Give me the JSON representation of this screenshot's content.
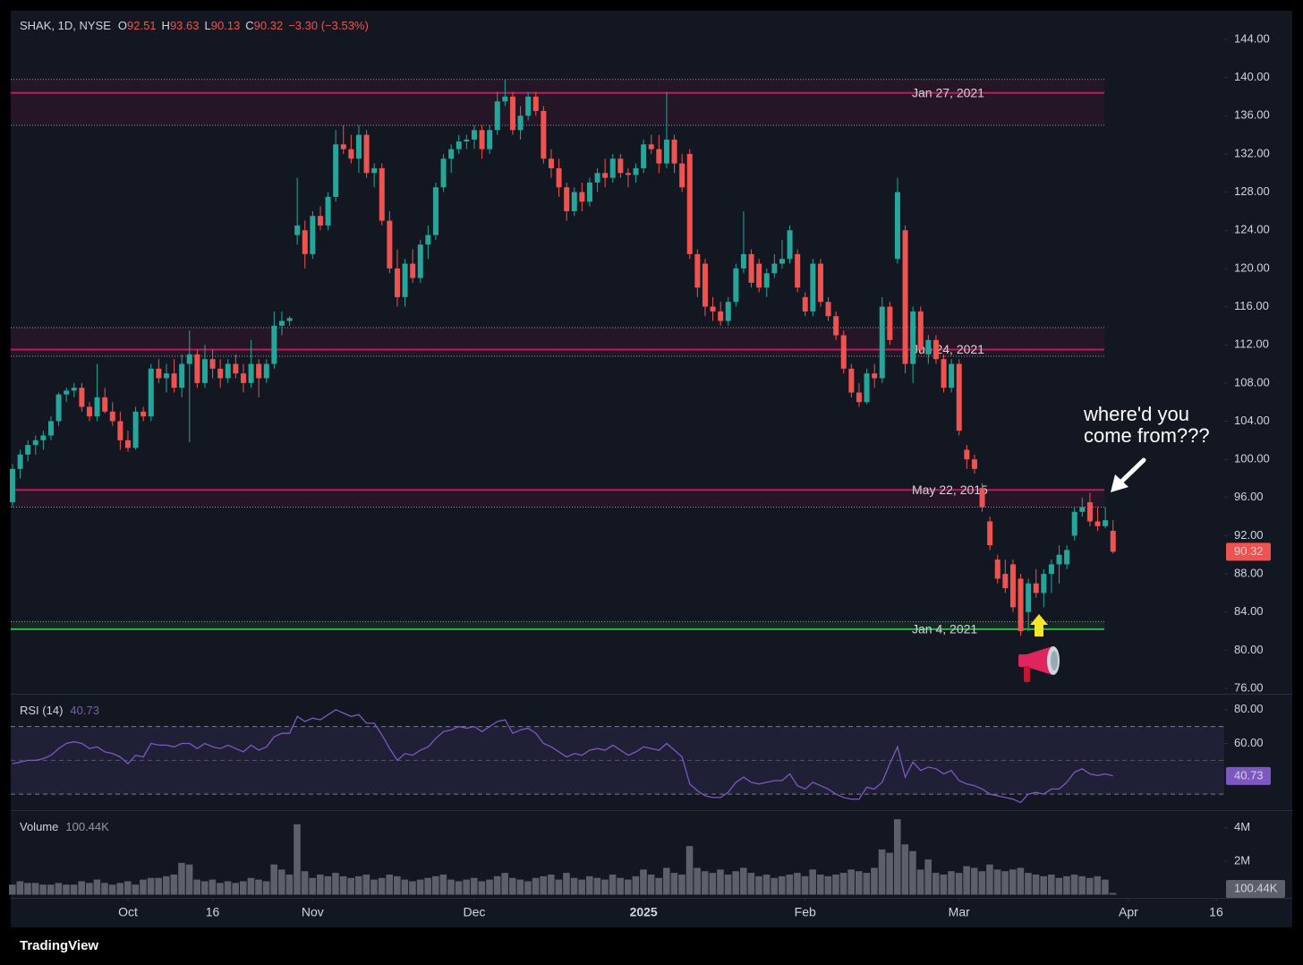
{
  "chart_data": [
    {
      "type": "candlestick",
      "symbol": "SHAK, 1D, NYSE",
      "change_label": "−3.30 (−3.53%)",
      "ohlc_letters": [
        "O",
        "H",
        "L",
        "C"
      ],
      "up_color": "#26a69a",
      "down_color": "#ef5350",
      "xlim": [
        -0.23,
        157.45
      ],
      "xticks": [
        {
          "value": 15,
          "label": "Oct"
        },
        {
          "value": 26,
          "label": "16"
        },
        {
          "value": 39,
          "label": "Nov"
        },
        {
          "value": 60,
          "label": "Dec"
        },
        {
          "value": 82,
          "label": "2025",
          "bold": true
        },
        {
          "value": 103,
          "label": "Feb"
        },
        {
          "value": 123,
          "label": "Mar"
        },
        {
          "value": 145,
          "label": "Apr"
        },
        {
          "value": 156.4,
          "label": "16"
        }
      ],
      "ylim": [
        75.44,
        147.0
      ],
      "yticks": [
        {
          "value": 144,
          "label": "144.00"
        },
        {
          "value": 140,
          "label": "140.00"
        },
        {
          "value": 136,
          "label": "136.00"
        },
        {
          "value": 132,
          "label": "132.00"
        },
        {
          "value": 128,
          "label": "128.00"
        },
        {
          "value": 124,
          "label": "124.00"
        },
        {
          "value": 120,
          "label": "120.00"
        },
        {
          "value": 116,
          "label": "116.00"
        },
        {
          "value": 112,
          "label": "112.00"
        },
        {
          "value": 108,
          "label": "108.00"
        },
        {
          "value": 104,
          "label": "104.00"
        },
        {
          "value": 100,
          "label": "100.00"
        },
        {
          "value": 96,
          "label": "96.00"
        },
        {
          "value": 92,
          "label": "92.00"
        },
        {
          "value": 88,
          "label": "88.00"
        },
        {
          "value": 84,
          "label": "84.00"
        },
        {
          "value": 80,
          "label": "80.00"
        },
        {
          "value": 76,
          "label": "76.00"
        }
      ],
      "levels": [
        {
          "label": "Jan 27, 2021",
          "value": 138.4,
          "zone": [
            135.0,
            139.8
          ],
          "color": "#c2185b"
        },
        {
          "label": "Jun 24, 2021",
          "value": 111.5,
          "zone": [
            110.8,
            113.8
          ],
          "color": "#c2185b"
        },
        {
          "label": "May 22, 2015",
          "value": 96.8,
          "zone": [
            95.0,
            96.8
          ],
          "color": "#c2185b"
        },
        {
          "label": "Jan 4, 2021",
          "value": 82.2,
          "zone": [
            82.2,
            83.0
          ],
          "color": "#2fb344"
        }
      ],
      "annotation": [
        "where'd you",
        "come from???"
      ],
      "candles": [
        [
          95.5,
          99.5,
          95,
          99
        ],
        [
          99,
          101,
          98,
          100.5
        ],
        [
          100.5,
          102,
          99.8,
          101.5
        ],
        [
          101.5,
          102.5,
          100.5,
          102
        ],
        [
          102,
          103,
          101,
          102.5
        ],
        [
          102.5,
          104.5,
          102,
          104
        ],
        [
          104,
          107,
          103.5,
          106.8
        ],
        [
          106.8,
          107.5,
          106,
          107.2
        ],
        [
          107.2,
          108,
          106.5,
          107.5
        ],
        [
          107.5,
          108,
          105,
          105.5
        ],
        [
          105.5,
          106,
          104,
          104.5
        ],
        [
          104.5,
          110,
          104,
          106.5
        ],
        [
          106.5,
          107.5,
          104.8,
          105
        ],
        [
          105,
          106,
          103.5,
          104
        ],
        [
          104,
          105,
          101,
          102
        ],
        [
          102,
          103,
          100.8,
          101.2
        ],
        [
          101.2,
          105.5,
          101,
          105
        ],
        [
          105,
          105.5,
          104,
          104.5
        ],
        [
          104.5,
          110,
          104,
          109.5
        ],
        [
          109.5,
          110.5,
          108,
          108.5
        ],
        [
          108.5,
          110,
          107,
          109
        ],
        [
          109,
          110.5,
          107,
          107.5
        ],
        [
          107.5,
          111,
          106.5,
          110
        ],
        [
          110,
          113.5,
          101.8,
          111
        ],
        [
          111,
          111.5,
          107.5,
          108
        ],
        [
          108,
          112,
          107.5,
          110.5
        ],
        [
          110.5,
          111.5,
          108.5,
          109.5
        ],
        [
          109.5,
          110.5,
          107.5,
          108.5
        ],
        [
          108.5,
          110.5,
          108,
          110
        ],
        [
          110,
          111,
          108.5,
          109
        ],
        [
          109,
          110,
          107,
          108
        ],
        [
          108,
          112.5,
          107.5,
          110
        ],
        [
          110,
          110.5,
          106.5,
          108.5
        ],
        [
          108.5,
          110.5,
          108,
          110
        ],
        [
          110,
          115.5,
          109.5,
          114
        ],
        [
          114,
          115.5,
          113,
          114.5
        ],
        [
          114.5,
          115,
          114,
          114.8
        ],
        [
          123.5,
          129.5,
          122.5,
          124.5
        ],
        [
          124,
          125,
          120,
          121.5
        ],
        [
          121.5,
          126,
          121,
          125.5
        ],
        [
          125.5,
          126.5,
          124,
          124.5
        ],
        [
          124.5,
          128,
          124,
          127.5
        ],
        [
          127.5,
          134.5,
          127,
          133
        ],
        [
          133,
          135,
          132,
          132.5
        ],
        [
          132.5,
          134,
          131,
          131.5
        ],
        [
          131.5,
          135,
          130,
          134
        ],
        [
          134,
          134.5,
          129.5,
          130
        ],
        [
          130,
          131,
          128.5,
          130.5
        ],
        [
          130.5,
          131,
          124.5,
          125
        ],
        [
          125,
          126,
          119.5,
          120
        ],
        [
          120,
          122,
          116,
          117
        ],
        [
          117,
          121,
          116,
          120.5
        ],
        [
          120.5,
          122,
          118.5,
          119
        ],
        [
          119,
          123,
          118.5,
          122.5
        ],
        [
          122.5,
          124.5,
          121,
          123.5
        ],
        [
          123.5,
          129,
          123,
          128.5
        ],
        [
          128.5,
          132,
          128,
          131.5
        ],
        [
          131.5,
          133,
          130,
          132.5
        ],
        [
          132.5,
          134,
          132,
          133.3
        ],
        [
          133.3,
          134,
          132.5,
          133.5
        ],
        [
          133.5,
          135,
          132.5,
          134.5
        ],
        [
          134.5,
          135,
          131.5,
          132.5
        ],
        [
          132.5,
          135,
          132,
          134.5
        ],
        [
          134.5,
          138.5,
          134,
          137.5
        ],
        [
          137.5,
          139.8,
          137,
          138
        ],
        [
          138,
          138.5,
          134,
          134.5
        ],
        [
          134.5,
          137,
          133.5,
          136
        ],
        [
          136,
          138.5,
          135.5,
          138
        ],
        [
          138,
          138.5,
          136,
          136.5
        ],
        [
          136.5,
          137,
          131,
          131.5
        ],
        [
          131.5,
          132.5,
          129.5,
          130.5
        ],
        [
          130.5,
          131.5,
          127.5,
          128.5
        ],
        [
          128.5,
          129,
          125,
          126
        ],
        [
          126,
          128.5,
          125.5,
          128
        ],
        [
          128,
          129,
          126,
          127
        ],
        [
          127,
          129.5,
          126.5,
          129
        ],
        [
          129,
          130.5,
          128,
          130
        ],
        [
          130,
          131.5,
          128.5,
          129.5
        ],
        [
          129.5,
          132,
          129,
          131.5
        ],
        [
          131.5,
          132,
          129.5,
          130
        ],
        [
          130,
          130.5,
          128.5,
          129.8
        ],
        [
          129.8,
          131,
          129,
          130.5
        ],
        [
          130.5,
          133.5,
          130,
          133
        ],
        [
          133,
          134,
          132,
          132.5
        ],
        [
          132.5,
          134,
          130,
          131
        ],
        [
          131,
          138.5,
          130.5,
          133.5
        ],
        [
          133.5,
          134,
          130,
          131
        ],
        [
          131,
          132,
          128,
          128.5
        ],
        [
          132,
          132.5,
          121,
          121.5
        ],
        [
          121.5,
          122,
          117,
          118
        ],
        [
          120.5,
          121,
          115,
          116
        ],
        [
          116,
          117,
          114.5,
          115.5
        ],
        [
          115.5,
          116.5,
          114,
          114.5
        ],
        [
          114.5,
          117,
          114,
          116.5
        ],
        [
          116.5,
          120.5,
          116,
          120
        ],
        [
          120,
          126,
          119.5,
          121.5
        ],
        [
          121.5,
          122,
          118,
          118.5
        ],
        [
          120.5,
          121,
          117.5,
          118
        ],
        [
          118,
          120,
          117,
          119.5
        ],
        [
          119.5,
          121.5,
          119,
          120.5
        ],
        [
          120.5,
          123,
          120,
          121
        ],
        [
          121,
          124.5,
          120.5,
          124
        ],
        [
          121.5,
          122,
          117.5,
          118
        ],
        [
          117,
          117.5,
          115,
          115.5
        ],
        [
          115.5,
          121,
          115,
          120.5
        ],
        [
          120.5,
          121,
          116,
          116.5
        ],
        [
          116.5,
          117,
          114.5,
          115
        ],
        [
          115,
          115.5,
          112.5,
          113
        ],
        [
          113,
          113.5,
          109,
          109.5
        ],
        [
          109.5,
          110,
          106.5,
          107
        ],
        [
          107,
          108,
          105.5,
          106
        ],
        [
          106,
          109.5,
          105.8,
          109
        ],
        [
          109,
          110,
          107.5,
          108.5
        ],
        [
          108.5,
          117,
          108,
          116
        ],
        [
          116,
          116.5,
          112,
          112.5
        ],
        [
          121,
          129.5,
          120.5,
          128
        ],
        [
          124,
          124.5,
          109,
          110
        ],
        [
          110,
          116,
          108,
          115.5
        ],
        [
          115.5,
          116,
          111,
          111.5
        ],
        [
          111,
          113,
          110,
          112.5
        ],
        [
          112.5,
          113,
          110,
          110.5
        ],
        [
          110.5,
          111,
          107,
          107.5
        ],
        [
          107.5,
          110.5,
          107,
          110
        ],
        [
          110,
          110.5,
          102.5,
          103
        ],
        [
          101,
          101.5,
          99,
          100
        ],
        [
          100,
          100.5,
          98.5,
          99
        ],
        [
          97,
          97.5,
          94.5,
          95
        ],
        [
          93.5,
          94,
          90.5,
          91
        ],
        [
          89.5,
          90,
          87,
          87.5
        ],
        [
          88,
          89.5,
          86,
          86.5
        ],
        [
          89,
          89.5,
          84,
          84.5
        ],
        [
          87.5,
          88,
          81.5,
          82
        ],
        [
          84,
          87.5,
          82,
          87
        ],
        [
          87,
          88.5,
          85.5,
          86
        ],
        [
          86,
          88.5,
          84.5,
          88
        ],
        [
          88,
          89.5,
          86,
          89
        ],
        [
          89,
          91,
          87,
          90
        ],
        [
          89,
          91,
          88.5,
          90.5
        ],
        [
          92,
          95,
          91.5,
          94.5
        ],
        [
          94.5,
          96,
          94,
          95
        ],
        [
          95.5,
          96.5,
          93,
          93.5
        ],
        [
          93.5,
          95,
          92.5,
          93
        ],
        [
          93,
          95,
          92.8,
          93.62
        ],
        [
          92.51,
          93.63,
          90.13,
          90.32
        ]
      ]
    },
    {
      "type": "line",
      "title": "RSI (14)",
      "color": "#7e57c2",
      "ylim": [
        20.5,
        88.9
      ],
      "yticks": [
        {
          "value": 80,
          "label": "80.00"
        },
        {
          "value": 60,
          "label": "60.00"
        }
      ],
      "bands": [
        30,
        70
      ],
      "midline": 50,
      "values": [
        48,
        49,
        50,
        50,
        51,
        53,
        57,
        60,
        61,
        60,
        57,
        58,
        55,
        54,
        52,
        48,
        53,
        52,
        60,
        59,
        59,
        58,
        60,
        60,
        57,
        60,
        58,
        57,
        59,
        57,
        55,
        59,
        56,
        58,
        64,
        66,
        66,
        76,
        73,
        75,
        74,
        77,
        80,
        78,
        76,
        77,
        72,
        72,
        65,
        57,
        50,
        54,
        53,
        56,
        58,
        63,
        67,
        68,
        70,
        69,
        70,
        67,
        70,
        73,
        74,
        66,
        68,
        69,
        66,
        60,
        58,
        55,
        52,
        54,
        53,
        56,
        57,
        56,
        59,
        56,
        53,
        55,
        58,
        57,
        56,
        60,
        56,
        52,
        36,
        32,
        29,
        28,
        28,
        31,
        37,
        40,
        37,
        36,
        37,
        38,
        38,
        42,
        35,
        33,
        37,
        35,
        33,
        30,
        28,
        27,
        27,
        34,
        33,
        37,
        48,
        58,
        40,
        49,
        44,
        46,
        45,
        42,
        44,
        38,
        36,
        35,
        33,
        30,
        29,
        28,
        27,
        25,
        30,
        31,
        30,
        33,
        33,
        37,
        43,
        45,
        42,
        41,
        42,
        40.73
      ]
    },
    {
      "type": "bar",
      "title": "Volume",
      "last_label": "100.44K",
      "color": "#5d606b",
      "ylim": [
        -0.19,
        4.99
      ],
      "yticks": [
        {
          "value": 4,
          "label": "4M"
        },
        {
          "value": 2,
          "label": "2M"
        }
      ],
      "values": [
        0.6,
        0.8,
        0.7,
        0.7,
        0.6,
        0.6,
        0.7,
        0.6,
        0.6,
        0.8,
        0.7,
        0.9,
        0.7,
        0.6,
        0.7,
        0.8,
        0.6,
        0.9,
        1.0,
        1.0,
        1.1,
        1.2,
        1.9,
        1.8,
        0.9,
        0.8,
        0.9,
        0.7,
        0.8,
        0.7,
        0.8,
        1.0,
        0.9,
        0.8,
        1.8,
        1.5,
        1.2,
        4.2,
        1.4,
        1.0,
        1.2,
        1.1,
        1.3,
        1.1,
        1.0,
        1.1,
        1.2,
        0.9,
        1.0,
        1.2,
        1.1,
        0.9,
        0.8,
        0.9,
        1.0,
        1.1,
        1.2,
        0.9,
        0.8,
        0.9,
        1.0,
        0.8,
        0.9,
        1.1,
        1.3,
        1.0,
        0.9,
        0.8,
        1.0,
        1.1,
        1.2,
        0.9,
        1.3,
        1.0,
        0.9,
        1.1,
        1.0,
        0.9,
        1.2,
        1.0,
        0.9,
        1.1,
        1.5,
        1.2,
        1.0,
        1.6,
        1.3,
        1.2,
        2.9,
        1.6,
        1.4,
        1.3,
        1.5,
        1.2,
        1.4,
        1.6,
        1.3,
        1.1,
        1.2,
        1.0,
        1.1,
        1.2,
        1.3,
        1.1,
        1.5,
        1.2,
        1.1,
        1.2,
        1.3,
        1.5,
        1.4,
        1.3,
        1.6,
        2.7,
        2.5,
        4.5,
        3.0,
        2.6,
        1.5,
        2.1,
        1.3,
        1.2,
        1.4,
        1.3,
        1.7,
        1.6,
        1.4,
        1.8,
        1.5,
        1.4,
        1.5,
        1.6,
        1.3,
        1.2,
        1.1,
        1.2,
        1.0,
        1.1,
        1.2,
        1.1,
        1.0,
        1.1,
        0.9,
        0.10044
      ]
    }
  ],
  "footer": "TradingView"
}
